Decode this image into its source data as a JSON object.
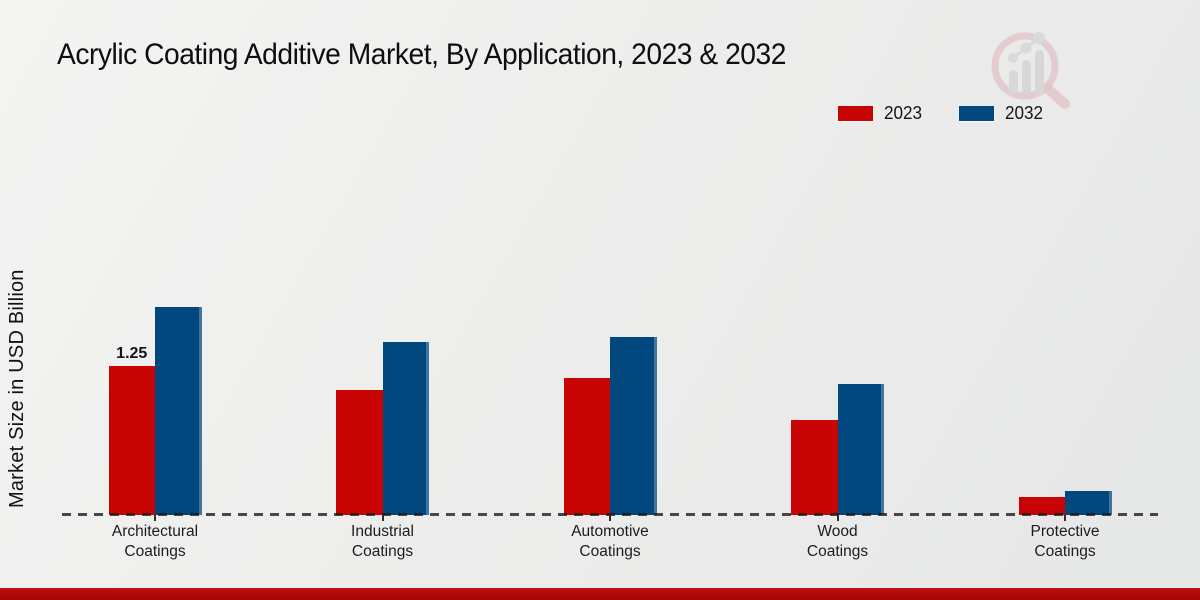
{
  "header": {
    "title": "Acrylic Coating Additive Market, By Application, 2023 & 2032"
  },
  "legend": [
    {
      "label": "2023",
      "color": "#c80404"
    },
    {
      "label": "2032",
      "color": "#01487e"
    }
  ],
  "chart_data": {
    "type": "bar",
    "title": "Acrylic Coating Additive Market, By Application, 2023 & 2032",
    "xlabel": "",
    "ylabel": "Market Size in USD Billion",
    "categories": [
      "Architectural Coatings",
      "Industrial Coatings",
      "Automotive Coatings",
      "Wood Coatings",
      "Protective Coatings"
    ],
    "series": [
      {
        "name": "2023",
        "color": "#c80404",
        "values": [
          1.25,
          1.05,
          1.15,
          0.8,
          0.15
        ]
      },
      {
        "name": "2032",
        "color": "#01487e",
        "values": [
          1.75,
          1.45,
          1.5,
          1.1,
          0.2
        ]
      }
    ],
    "data_labels": [
      {
        "series": 0,
        "index": 0,
        "text": "1.25"
      }
    ],
    "ylim": [
      0,
      2
    ],
    "grid": false,
    "axis_style": "dashed-baseline-only",
    "legend_position": "top-right"
  },
  "branding": {
    "watermark_icon": "magnifier-bar-chart-logo",
    "footer_color": "#ae0707"
  }
}
